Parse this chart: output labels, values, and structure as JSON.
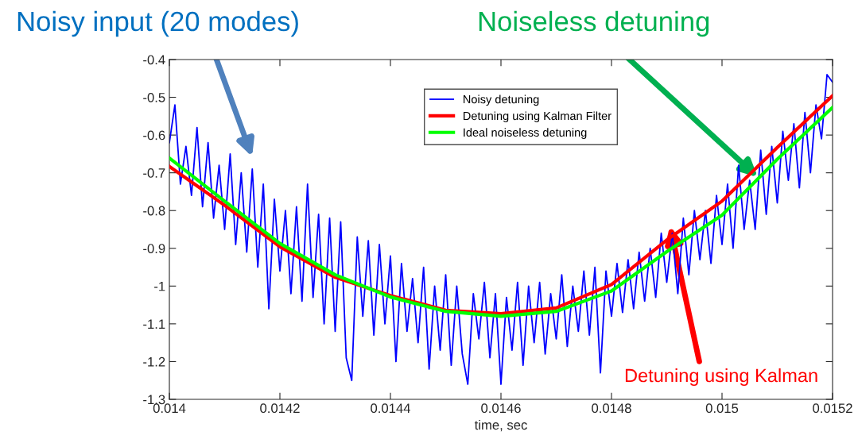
{
  "chart_data": {
    "type": "line",
    "xlabel": "time, sec",
    "x": [
      0.014,
      0.01401,
      0.01402,
      0.01403,
      0.01404,
      0.01405,
      0.01406,
      0.01407,
      0.01408,
      0.01409,
      0.0141,
      0.01411,
      0.01412,
      0.01413,
      0.01414,
      0.01415,
      0.01416,
      0.01417,
      0.01418,
      0.01419,
      0.0142,
      0.01421,
      0.01422,
      0.01423,
      0.01424,
      0.01425,
      0.01426,
      0.01427,
      0.01428,
      0.01429,
      0.0143,
      0.01431,
      0.01432,
      0.01433,
      0.01434,
      0.01435,
      0.01436,
      0.01437,
      0.01438,
      0.01439,
      0.0144,
      0.01441,
      0.01442,
      0.01443,
      0.01444,
      0.01445,
      0.01446,
      0.01447,
      0.01448,
      0.01449,
      0.0145,
      0.01451,
      0.01452,
      0.01453,
      0.01454,
      0.01455,
      0.01456,
      0.01457,
      0.01458,
      0.01459,
      0.0146,
      0.01461,
      0.01462,
      0.01463,
      0.01464,
      0.01465,
      0.01466,
      0.01467,
      0.01468,
      0.01469,
      0.0147,
      0.01471,
      0.01472,
      0.01473,
      0.01474,
      0.01475,
      0.01476,
      0.01477,
      0.01478,
      0.01479,
      0.0148,
      0.01481,
      0.01482,
      0.01483,
      0.01484,
      0.01485,
      0.01486,
      0.01487,
      0.01488,
      0.01489,
      0.0149,
      0.01491,
      0.01492,
      0.01493,
      0.01494,
      0.01495,
      0.01496,
      0.01497,
      0.01498,
      0.01499,
      0.015,
      0.01501,
      0.01502,
      0.01503,
      0.01504,
      0.01505,
      0.01506,
      0.01507,
      0.01508,
      0.01509,
      0.0151,
      0.01511,
      0.01512,
      0.01513,
      0.01514,
      0.01515,
      0.01516,
      0.01517,
      0.01518,
      0.01519,
      0.0152
    ],
    "series": [
      {
        "name": "Noisy detuning",
        "color": "#0000ff",
        "values": [
          -0.62,
          -0.52,
          -0.73,
          -0.63,
          -0.76,
          -0.58,
          -0.79,
          -0.62,
          -0.82,
          -0.68,
          -0.85,
          -0.65,
          -0.89,
          -0.7,
          -0.91,
          -0.69,
          -0.95,
          -0.73,
          -1.06,
          -0.77,
          -0.96,
          -0.8,
          -1.02,
          -0.79,
          -1.04,
          -0.73,
          -1.03,
          -0.81,
          -1.1,
          -0.82,
          -1.12,
          -0.83,
          -1.19,
          -1.25,
          -0.87,
          -1.08,
          -0.88,
          -1.13,
          -0.89,
          -1.1,
          -0.92,
          -1.2,
          -0.94,
          -1.12,
          -0.98,
          -1.15,
          -0.95,
          -1.22,
          -1.0,
          -1.17,
          -0.97,
          -1.21,
          -1.0,
          -1.18,
          -1.26,
          -1.02,
          -1.14,
          -0.99,
          -1.19,
          -1.02,
          -1.26,
          -1.03,
          -1.17,
          -0.99,
          -1.21,
          -1.0,
          -1.15,
          -0.99,
          -1.18,
          -1.02,
          -1.14,
          -0.97,
          -1.16,
          -1.0,
          -1.12,
          -0.96,
          -1.13,
          -0.95,
          -1.23,
          -0.96,
          -1.08,
          -0.94,
          -1.07,
          -0.93,
          -1.06,
          -0.91,
          -1.04,
          -0.9,
          -1.03,
          -0.86,
          -0.99,
          -0.86,
          -1.02,
          -0.82,
          -0.97,
          -0.8,
          -0.93,
          -0.8,
          -0.94,
          -0.76,
          -0.89,
          -0.73,
          -0.9,
          -0.68,
          -0.85,
          -0.72,
          -0.85,
          -0.64,
          -0.81,
          -0.63,
          -0.78,
          -0.59,
          -0.72,
          -0.57,
          -0.74,
          -0.54,
          -0.7,
          -0.52,
          -0.61,
          -0.44,
          -0.46
        ]
      },
      {
        "name": "Detuning using Kalman Filter",
        "color": "#ff0000",
        "x": [
          0.014,
          0.0141,
          0.0142,
          0.0143,
          0.0144,
          0.0145,
          0.0146,
          0.0147,
          0.0148,
          0.0149,
          0.015,
          0.0151,
          0.0152
        ],
        "values": [
          -0.683,
          -0.786,
          -0.896,
          -0.977,
          -1.025,
          -1.064,
          -1.073,
          -1.058,
          -0.996,
          -0.878,
          -0.775,
          -0.633,
          -0.496
        ]
      },
      {
        "name": "Ideal noiseless detuning",
        "color": "#00ff00",
        "x": [
          0.014,
          0.0141,
          0.0142,
          0.0143,
          0.0144,
          0.0145,
          0.0146,
          0.0147,
          0.0148,
          0.0149,
          0.015,
          0.0151,
          0.0152
        ],
        "values": [
          -0.661,
          -0.775,
          -0.887,
          -0.97,
          -1.029,
          -1.067,
          -1.08,
          -1.067,
          -1.013,
          -0.909,
          -0.812,
          -0.664,
          -0.527
        ]
      }
    ],
    "xlim": [
      0.014,
      0.0152
    ],
    "xticks": [
      0.014,
      0.0142,
      0.0144,
      0.0146,
      0.0148,
      0.015,
      0.0152
    ],
    "ylim": [
      -1.3,
      -0.4
    ],
    "yticks": [
      -1.3,
      -1.2,
      -1.1,
      -1,
      -0.9,
      -0.8,
      -0.7,
      -0.6,
      -0.5,
      -0.4
    ],
    "grid": false,
    "legend": "top",
    "annotations": [
      "Noisy input (20 modes)",
      "Noiseless detuning",
      "Detuning using Kalman"
    ]
  }
}
